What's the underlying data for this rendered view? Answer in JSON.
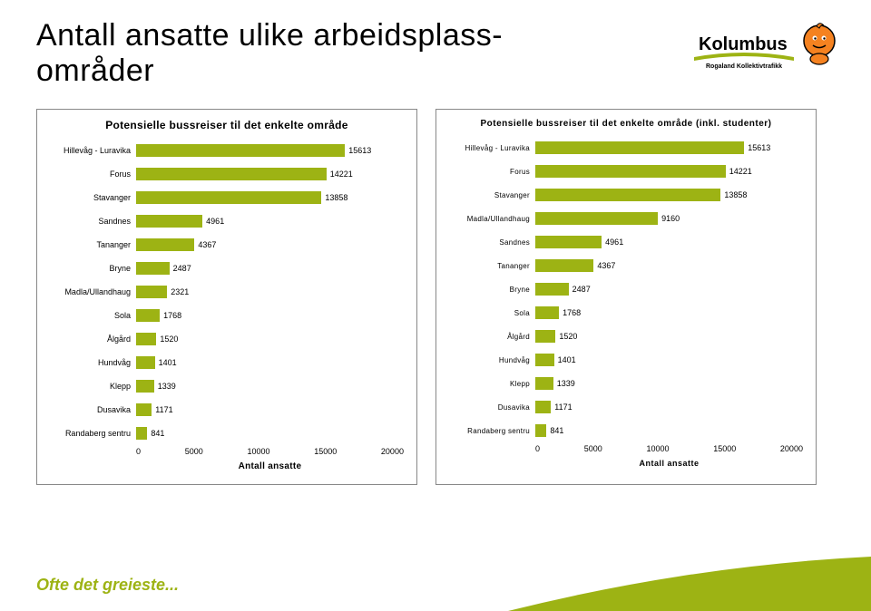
{
  "title": "Antall ansatte ulike arbeidsplass-\nområder",
  "logo": {
    "brand_name": "Kolumbus",
    "subtitle": "Rogaland Kollektivtrafikk",
    "text_color": "#000000",
    "swoosh_color": "#9db314",
    "mascot_body_color": "#f58220",
    "mascot_outline_color": "#000000"
  },
  "footer": {
    "text": "Ofte det greieste...",
    "text_color": "#9db314",
    "curve_color": "#9db314"
  },
  "chart1": {
    "type": "bar",
    "orientation": "horizontal",
    "title": "Potensielle bussreiser til det enkelte område",
    "axis_label": "Antall ansatte",
    "bar_color": "#9db314",
    "border_color": "#888888",
    "grid_color": "#cccccc",
    "label_fontsize": 9,
    "title_fontsize": 12,
    "xlim": [
      0,
      20000
    ],
    "xticks": [
      0,
      5000,
      10000,
      15000,
      20000
    ],
    "xtick_labels": [
      "0",
      "5000",
      "10000",
      "15000",
      "20000"
    ],
    "categories": [
      "Hillevåg - Luravika",
      "Forus",
      "Stavanger",
      "Sandnes",
      "Tananger",
      "Bryne",
      "Madla/Ullandhaug",
      "Sola",
      "Ålgård",
      "Hundvåg",
      "Klepp",
      "Dusavika",
      "Randaberg sentru"
    ],
    "values": [
      15613,
      14221,
      13858,
      4961,
      4367,
      2487,
      2321,
      1768,
      1520,
      1401,
      1339,
      1171,
      841
    ]
  },
  "chart2": {
    "type": "bar",
    "orientation": "horizontal",
    "title": "Potensielle bussreiser til det enkelte område (inkl. studenter)",
    "axis_label": "Antall ansatte",
    "bar_color": "#9db314",
    "border_color": "#888888",
    "grid_color": "#cccccc",
    "label_fontsize": 8,
    "title_fontsize": 10,
    "xlim": [
      0,
      20000
    ],
    "xticks": [
      0,
      5000,
      10000,
      15000,
      20000
    ],
    "xtick_labels": [
      "0",
      "5000",
      "10000",
      "15000",
      "20000"
    ],
    "categories": [
      "Hillevåg - Luravika",
      "Forus",
      "Stavanger",
      "Madla/Ullandhaug",
      "Sandnes",
      "Tananger",
      "Bryne",
      "Sola",
      "Ålgård",
      "Hundvåg",
      "Klepp",
      "Dusavika",
      "Randaberg sentru"
    ],
    "values": [
      15613,
      14221,
      13858,
      9160,
      4961,
      4367,
      2487,
      1768,
      1520,
      1401,
      1339,
      1171,
      841
    ]
  }
}
